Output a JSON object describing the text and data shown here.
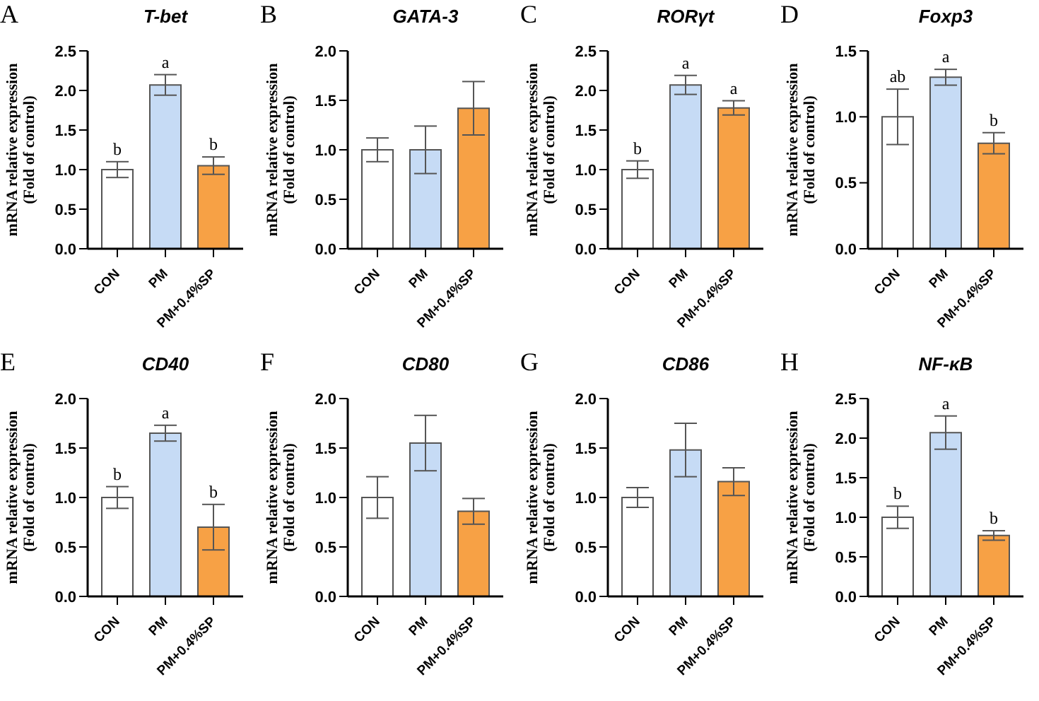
{
  "chart_data": [
    {
      "type": "bar",
      "title": "T-bet",
      "ylabel": "mRNA relative expression (Fold of control)",
      "categories": [
        "CON",
        "PM",
        "PM+0.4%SP"
      ],
      "values": [
        1.0,
        2.07,
        1.05
      ],
      "errors": [
        0.1,
        0.13,
        0.11
      ],
      "colors": [
        "#ffffff",
        "#c6dbf5",
        "#f7a145"
      ],
      "ylim": [
        0,
        2.5
      ],
      "yticks": [
        {
          "value": 0,
          "label": "0.0"
        },
        {
          "value": 0.5,
          "label": "0.5"
        },
        {
          "value": 1,
          "label": "1.0"
        },
        {
          "value": 1.5,
          "label": "1.5"
        },
        {
          "value": 2,
          "label": "2.0"
        },
        {
          "value": 2.5,
          "label": "2.5"
        }
      ],
      "grid": false,
      "legend": false,
      "annotations": [
        "A",
        {
          "text": "b",
          "x": "CON",
          "y": 1.1
        },
        {
          "text": "a",
          "x": "PM",
          "y": 2.2
        },
        {
          "text": "b",
          "x": "PM+0.4%SP",
          "y": 1.16
        }
      ]
    },
    {
      "type": "bar",
      "title": "GATA-3",
      "ylabel": "mRNA relative expression (Fold of control)",
      "categories": [
        "CON",
        "PM",
        "PM+0.4%SP"
      ],
      "values": [
        1.0,
        1.0,
        1.42
      ],
      "errors": [
        0.12,
        0.24,
        0.27
      ],
      "colors": [
        "#ffffff",
        "#c6dbf5",
        "#f7a145"
      ],
      "ylim": [
        0,
        2
      ],
      "yticks": [
        {
          "value": 0,
          "label": "0.0"
        },
        {
          "value": 0.5,
          "label": "0.5"
        },
        {
          "value": 1,
          "label": "1.0"
        },
        {
          "value": 1.5,
          "label": "1.5"
        },
        {
          "value": 2,
          "label": "2.0"
        }
      ],
      "grid": false,
      "legend": false,
      "annotations": [
        "B"
      ]
    },
    {
      "type": "bar",
      "title": "RORγt",
      "ylabel": "mRNA relative expression (Fold of control)",
      "categories": [
        "CON",
        "PM",
        "PM+0.4%SP"
      ],
      "values": [
        1.0,
        2.07,
        1.78
      ],
      "errors": [
        0.11,
        0.12,
        0.09
      ],
      "colors": [
        "#ffffff",
        "#c6dbf5",
        "#f7a145"
      ],
      "ylim": [
        0,
        2.5
      ],
      "yticks": [
        {
          "value": 0,
          "label": "0.0"
        },
        {
          "value": 0.5,
          "label": "0.5"
        },
        {
          "value": 1,
          "label": "1.0"
        },
        {
          "value": 1.5,
          "label": "1.5"
        },
        {
          "value": 2,
          "label": "2.0"
        },
        {
          "value": 2.5,
          "label": "2.5"
        }
      ],
      "grid": false,
      "legend": false,
      "annotations": [
        "C",
        {
          "text": "b",
          "x": "CON",
          "y": 1.11
        },
        {
          "text": "a",
          "x": "PM",
          "y": 2.19
        },
        {
          "text": "a",
          "x": "PM+0.4%SP",
          "y": 1.87
        }
      ]
    },
    {
      "type": "bar",
      "title": "Foxp3",
      "ylabel": "mRNA relative expression (Fold of control)",
      "categories": [
        "CON",
        "PM",
        "PM+0.4%SP"
      ],
      "values": [
        1.0,
        1.3,
        0.8
      ],
      "errors": [
        0.21,
        0.06,
        0.08
      ],
      "colors": [
        "#ffffff",
        "#c6dbf5",
        "#f7a145"
      ],
      "ylim": [
        0,
        1.5
      ],
      "yticks": [
        {
          "value": 0,
          "label": "0.0"
        },
        {
          "value": 0.5,
          "label": "0.5"
        },
        {
          "value": 1,
          "label": "1.0"
        },
        {
          "value": 1.5,
          "label": "1.5"
        }
      ],
      "grid": false,
      "legend": false,
      "annotations": [
        "D",
        {
          "text": "ab",
          "x": "CON",
          "y": 1.21
        },
        {
          "text": "a",
          "x": "PM",
          "y": 1.36
        },
        {
          "text": "b",
          "x": "PM+0.4%SP",
          "y": 0.88
        }
      ]
    },
    {
      "type": "bar",
      "title": "CD40",
      "ylabel": "mRNA relative expression (Fold of control)",
      "categories": [
        "CON",
        "PM",
        "PM+0.4%SP"
      ],
      "values": [
        1.0,
        1.65,
        0.7
      ],
      "errors": [
        0.11,
        0.08,
        0.23
      ],
      "colors": [
        "#ffffff",
        "#c6dbf5",
        "#f7a145"
      ],
      "ylim": [
        0,
        2
      ],
      "yticks": [
        {
          "value": 0,
          "label": "0.0"
        },
        {
          "value": 0.5,
          "label": "0.5"
        },
        {
          "value": 1,
          "label": "1.0"
        },
        {
          "value": 1.5,
          "label": "1.5"
        },
        {
          "value": 2,
          "label": "2.0"
        }
      ],
      "grid": false,
      "legend": false,
      "annotations": [
        "E",
        {
          "text": "b",
          "x": "CON",
          "y": 1.11
        },
        {
          "text": "a",
          "x": "PM",
          "y": 1.73
        },
        {
          "text": "b",
          "x": "PM+0.4%SP",
          "y": 0.93
        }
      ]
    },
    {
      "type": "bar",
      "title": "CD80",
      "ylabel": "mRNA relative expression (Fold of control)",
      "categories": [
        "CON",
        "PM",
        "PM+0.4%SP"
      ],
      "values": [
        1.0,
        1.55,
        0.86
      ],
      "errors": [
        0.21,
        0.28,
        0.13
      ],
      "colors": [
        "#ffffff",
        "#c6dbf5",
        "#f7a145"
      ],
      "ylim": [
        0,
        2
      ],
      "yticks": [
        {
          "value": 0,
          "label": "0.0"
        },
        {
          "value": 0.5,
          "label": "0.5"
        },
        {
          "value": 1,
          "label": "1.0"
        },
        {
          "value": 1.5,
          "label": "1.5"
        },
        {
          "value": 2,
          "label": "2.0"
        }
      ],
      "grid": false,
      "legend": false,
      "annotations": [
        "F"
      ]
    },
    {
      "type": "bar",
      "title": "CD86",
      "ylabel": "mRNA relative expression (Fold of control)",
      "categories": [
        "CON",
        "PM",
        "PM+0.4%SP"
      ],
      "values": [
        1.0,
        1.48,
        1.16
      ],
      "errors": [
        0.1,
        0.27,
        0.14
      ],
      "colors": [
        "#ffffff",
        "#c6dbf5",
        "#f7a145"
      ],
      "ylim": [
        0,
        2
      ],
      "yticks": [
        {
          "value": 0,
          "label": "0.0"
        },
        {
          "value": 0.5,
          "label": "0.5"
        },
        {
          "value": 1,
          "label": "1.0"
        },
        {
          "value": 1.5,
          "label": "1.5"
        },
        {
          "value": 2,
          "label": "2.0"
        }
      ],
      "grid": false,
      "legend": false,
      "annotations": [
        "G"
      ]
    },
    {
      "type": "bar",
      "title": "NF-κB",
      "ylabel": "mRNA relative expression (Fold of control)",
      "categories": [
        "CON",
        "PM",
        "PM+0.4%SP"
      ],
      "values": [
        1.0,
        2.07,
        0.77
      ],
      "errors": [
        0.14,
        0.21,
        0.06
      ],
      "colors": [
        "#ffffff",
        "#c6dbf5",
        "#f7a145"
      ],
      "ylim": [
        0,
        2.5
      ],
      "yticks": [
        {
          "value": 0,
          "label": "0.0"
        },
        {
          "value": 0.5,
          "label": "0.5"
        },
        {
          "value": 1,
          "label": "1.0"
        },
        {
          "value": 1.5,
          "label": "1.5"
        },
        {
          "value": 2,
          "label": "2.0"
        },
        {
          "value": 2.5,
          "label": "2.5"
        }
      ],
      "grid": false,
      "legend": false,
      "annotations": [
        "H",
        {
          "text": "b",
          "x": "CON",
          "y": 1.14
        },
        {
          "text": "a",
          "x": "PM",
          "y": 2.28
        },
        {
          "text": "b",
          "x": "PM+0.4%SP",
          "y": 0.83
        }
      ]
    }
  ]
}
